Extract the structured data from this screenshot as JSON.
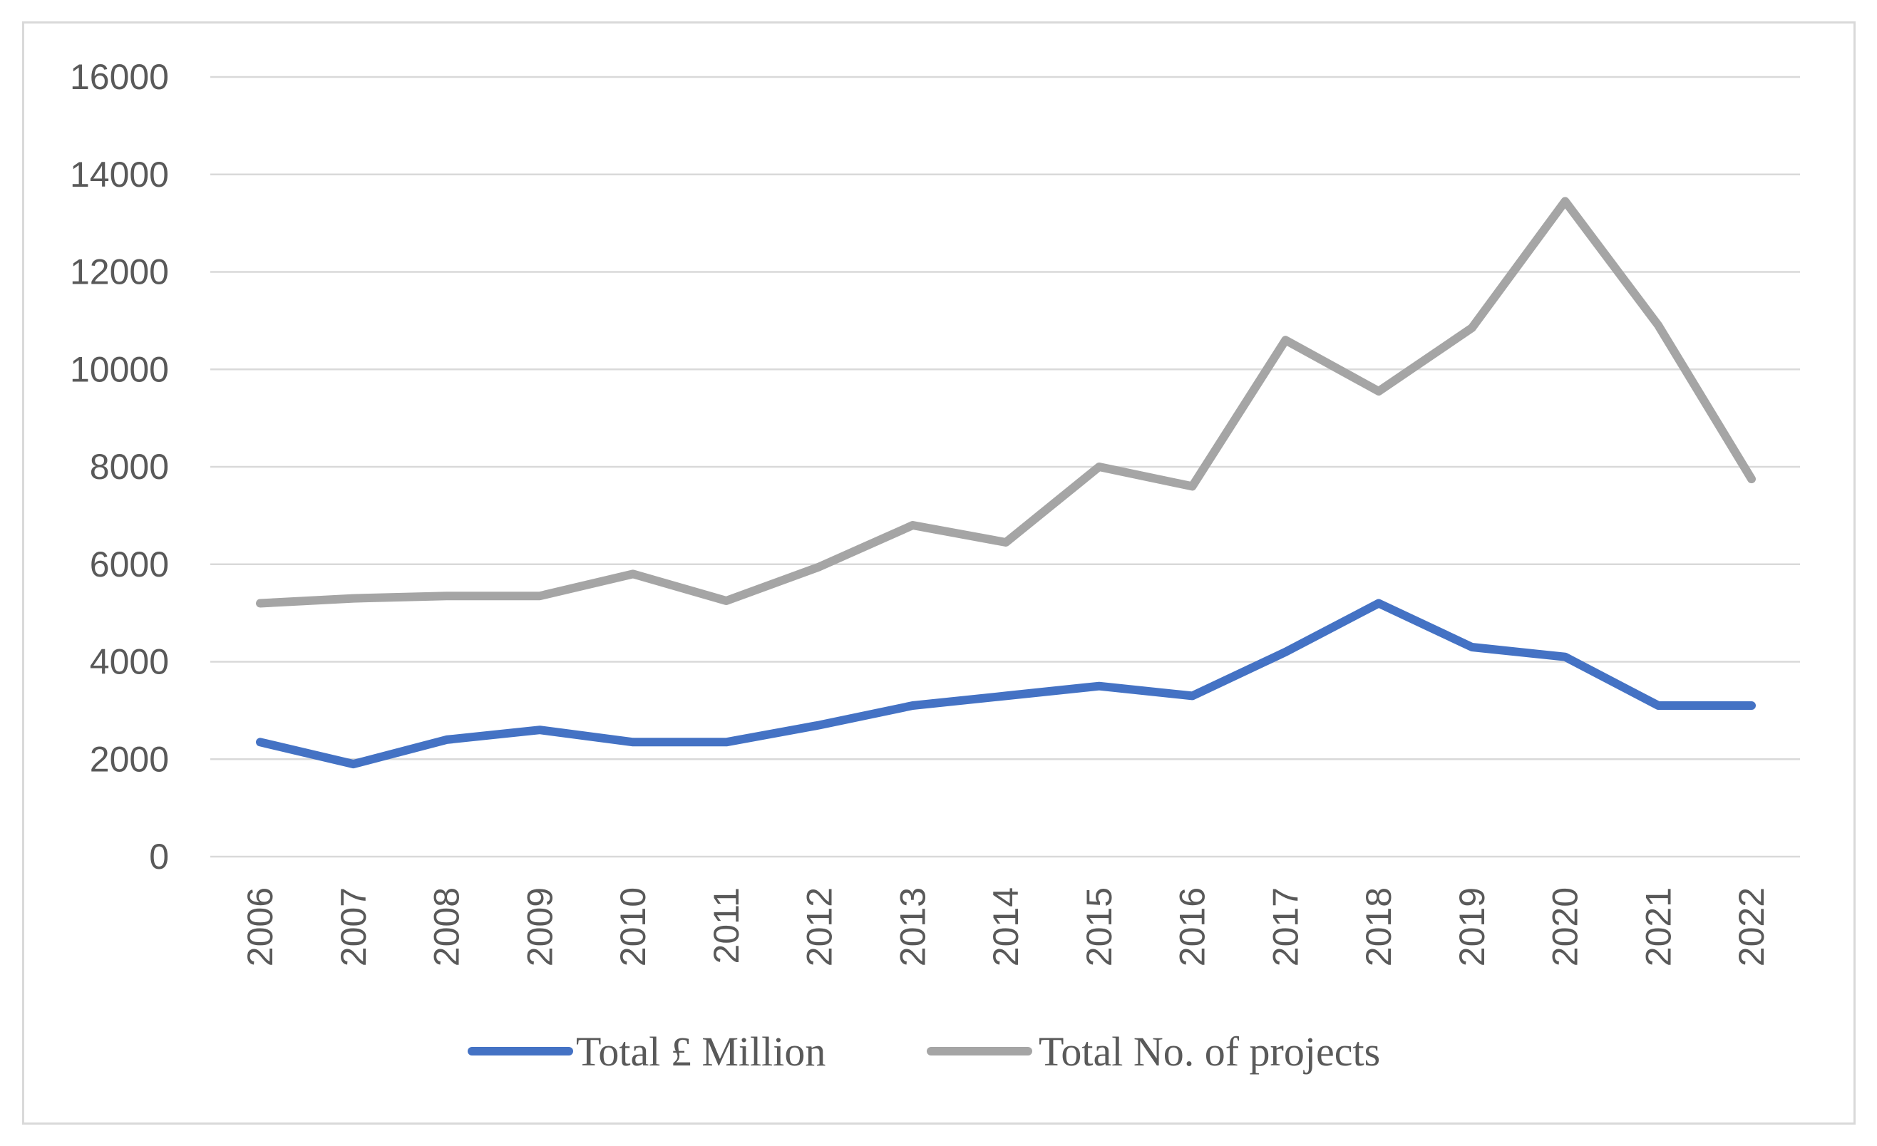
{
  "chart_data": {
    "type": "line",
    "title": "",
    "xlabel": "",
    "ylabel": "",
    "categories": [
      "2006",
      "2007",
      "2008",
      "2009",
      "2010",
      "2011",
      "2012",
      "2013",
      "2014",
      "2015",
      "2016",
      "2017",
      "2018",
      "2019",
      "2020",
      "2021",
      "2022"
    ],
    "ylim": [
      0,
      16000
    ],
    "yticks": [
      "0",
      "2000",
      "4000",
      "6000",
      "8000",
      "10000",
      "12000",
      "14000",
      "16000"
    ],
    "grid": true,
    "legend_position": "bottom",
    "series": [
      {
        "name": "Total £ Million",
        "color": "#4472c4",
        "values": [
          2350,
          1900,
          2400,
          2600,
          2350,
          2350,
          2700,
          3100,
          3300,
          3500,
          3300,
          4200,
          5200,
          4300,
          4100,
          3100,
          3100
        ]
      },
      {
        "name": "Total No. of projects",
        "color": "#a5a5a5",
        "values": [
          5200,
          5300,
          5350,
          5350,
          5800,
          5250,
          5950,
          6800,
          6450,
          8000,
          7600,
          10600,
          9550,
          10850,
          13450,
          10900,
          7750
        ]
      }
    ]
  }
}
